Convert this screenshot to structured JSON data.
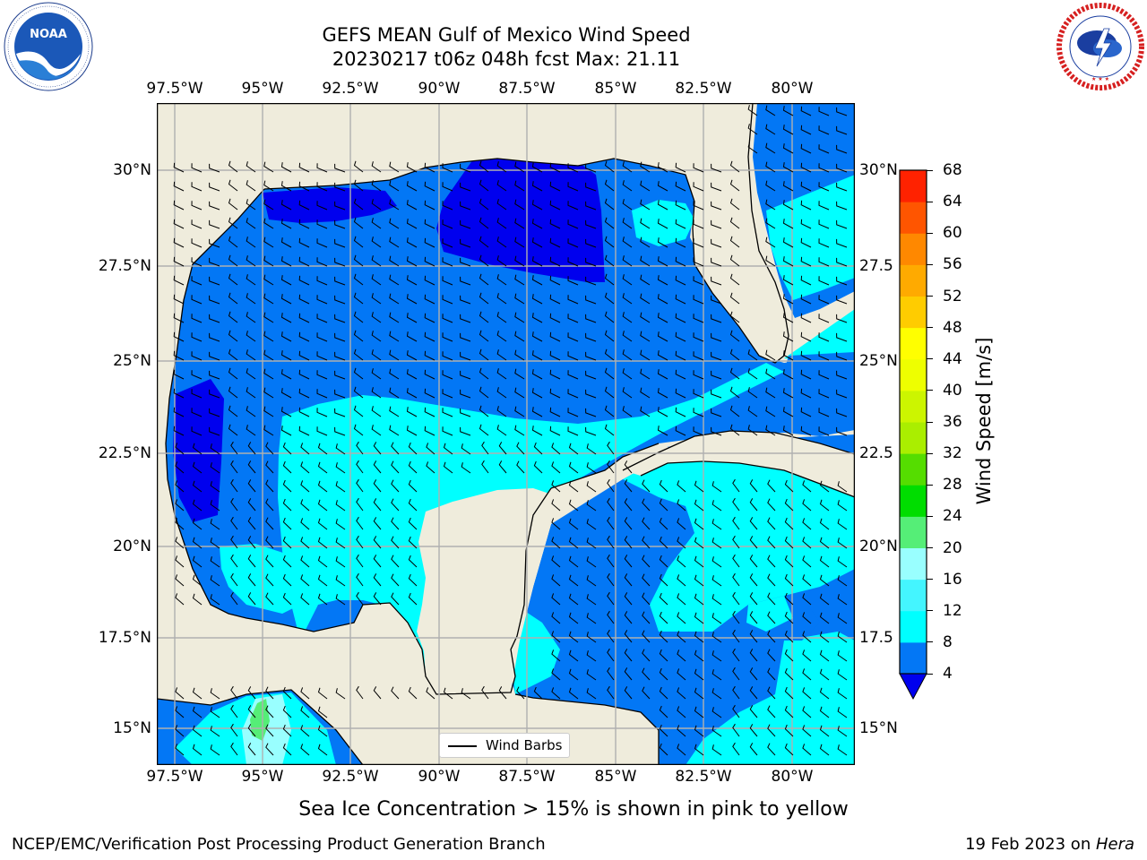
{
  "header": {
    "title_line1": "GEFS MEAN Gulf of Mexico Wind Speed",
    "title_line2": "20230217 t06z 048h fcst   Max: 21.11"
  },
  "logos": {
    "left": {
      "name": "noaa-logo",
      "text": "NOAA",
      "ring_text": "NATIONAL OCEANIC AND ATMOSPHERIC ADMINISTRATION · U.S. DEPARTMENT OF COMMERCE"
    },
    "right": {
      "name": "nws-logo",
      "ring_text": "NATIONAL WEATHER SERVICE"
    }
  },
  "map": {
    "lon_labels": [
      "97.5°W",
      "95°W",
      "92.5°W",
      "90°W",
      "87.5°W",
      "85°W",
      "82.5°W",
      "80°W"
    ],
    "lat_labels_left": [
      "30°N",
      "27.5°N",
      "25°N",
      "22.5°N",
      "20°N",
      "17.5°N",
      "15°N"
    ],
    "lat_labels_right": [
      "30°N",
      "27.5",
      "25°N",
      "22.5",
      "20°N",
      "17.5",
      "15°N"
    ],
    "colors": {
      "land": "#efecdc",
      "ocean_4_8": "#0377f5",
      "ocean_0_4": "#0000ee",
      "ocean_8_12": "#00ffff",
      "ocean_12_16": "#44f5ff",
      "ocean_16_20": "#99ffff",
      "ocean_20_24": "#55ee77",
      "grid": "#b0b0b0"
    },
    "legend_label": "Wind Barbs"
  },
  "colorbar": {
    "title": "Wind Speed [m/s]",
    "ticks": [
      "4",
      "8",
      "12",
      "16",
      "20",
      "24",
      "28",
      "32",
      "36",
      "40",
      "44",
      "48",
      "52",
      "56",
      "60",
      "64",
      "68"
    ],
    "colors": [
      "#0377f5",
      "#00ffff",
      "#44f5ff",
      "#99ffff",
      "#55ee77",
      "#00dd00",
      "#55dd00",
      "#aaee00",
      "#ccf500",
      "#eeff00",
      "#ffff00",
      "#ffcc00",
      "#ffaa00",
      "#ff8800",
      "#ff5500",
      "#ff2200"
    ],
    "under_color": "#0000ee"
  },
  "footer": {
    "sea_ice_note": "Sea Ice Concentration > 15% is shown in pink to yellow",
    "credit": "NCEP/EMC/Verification Post Processing Product Generation Branch",
    "date_prefix": "19 Feb 2023 on ",
    "date_machine": "Hera"
  }
}
